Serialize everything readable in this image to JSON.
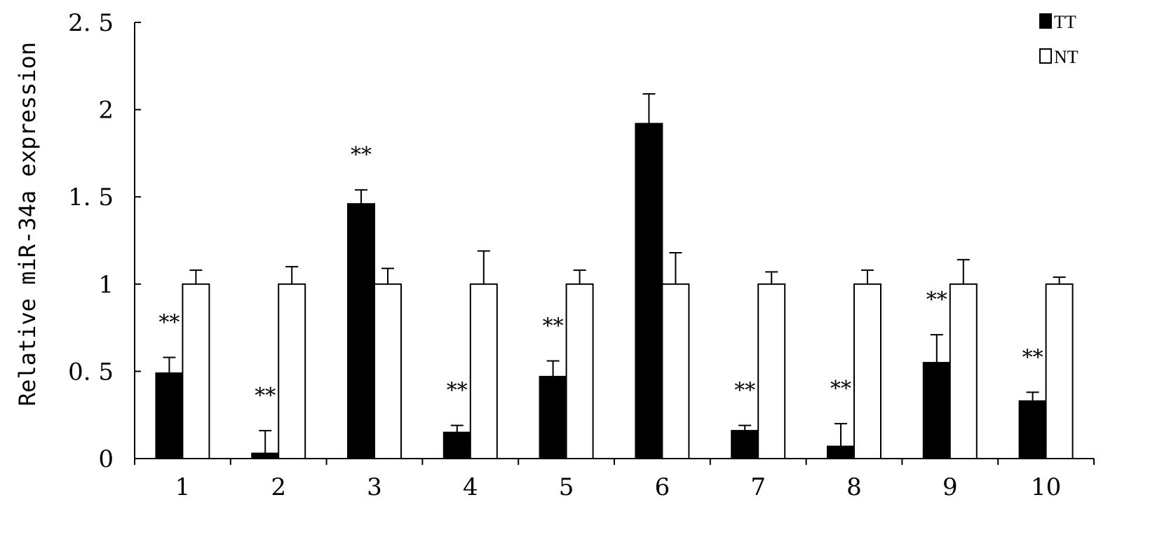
{
  "chart_data": {
    "type": "bar",
    "title": "",
    "xlabel": "",
    "ylabel": "Relative miR-34a expression",
    "ylim": [
      0,
      2.5
    ],
    "yticks": [
      0,
      0.5,
      1,
      1.5,
      2,
      2.5
    ],
    "ytick_labels": [
      "0",
      "0. 5",
      "1",
      "1. 5",
      "2",
      "2. 5"
    ],
    "categories": [
      "1",
      "2",
      "3",
      "4",
      "5",
      "6",
      "7",
      "8",
      "9",
      "10"
    ],
    "series": [
      {
        "name": "TT",
        "fill": "#000000",
        "values": [
          0.49,
          0.03,
          1.46,
          0.15,
          0.47,
          1.92,
          0.16,
          0.07,
          0.55,
          0.33
        ],
        "errors": [
          0.09,
          0.13,
          0.08,
          0.04,
          0.09,
          0.17,
          0.03,
          0.13,
          0.16,
          0.05
        ]
      },
      {
        "name": "NT",
        "fill": "#ffffff",
        "values": [
          1,
          1,
          1,
          1,
          1,
          1,
          1,
          1,
          1,
          1
        ],
        "errors": [
          0.08,
          0.1,
          0.09,
          0.19,
          0.08,
          0.18,
          0.07,
          0.08,
          0.14,
          0.04
        ]
      }
    ],
    "annotations": [
      "**",
      "**",
      "**",
      "**",
      "**",
      "",
      "**",
      "**",
      "**",
      "**"
    ],
    "grid": false,
    "legend_position": "top-right"
  }
}
